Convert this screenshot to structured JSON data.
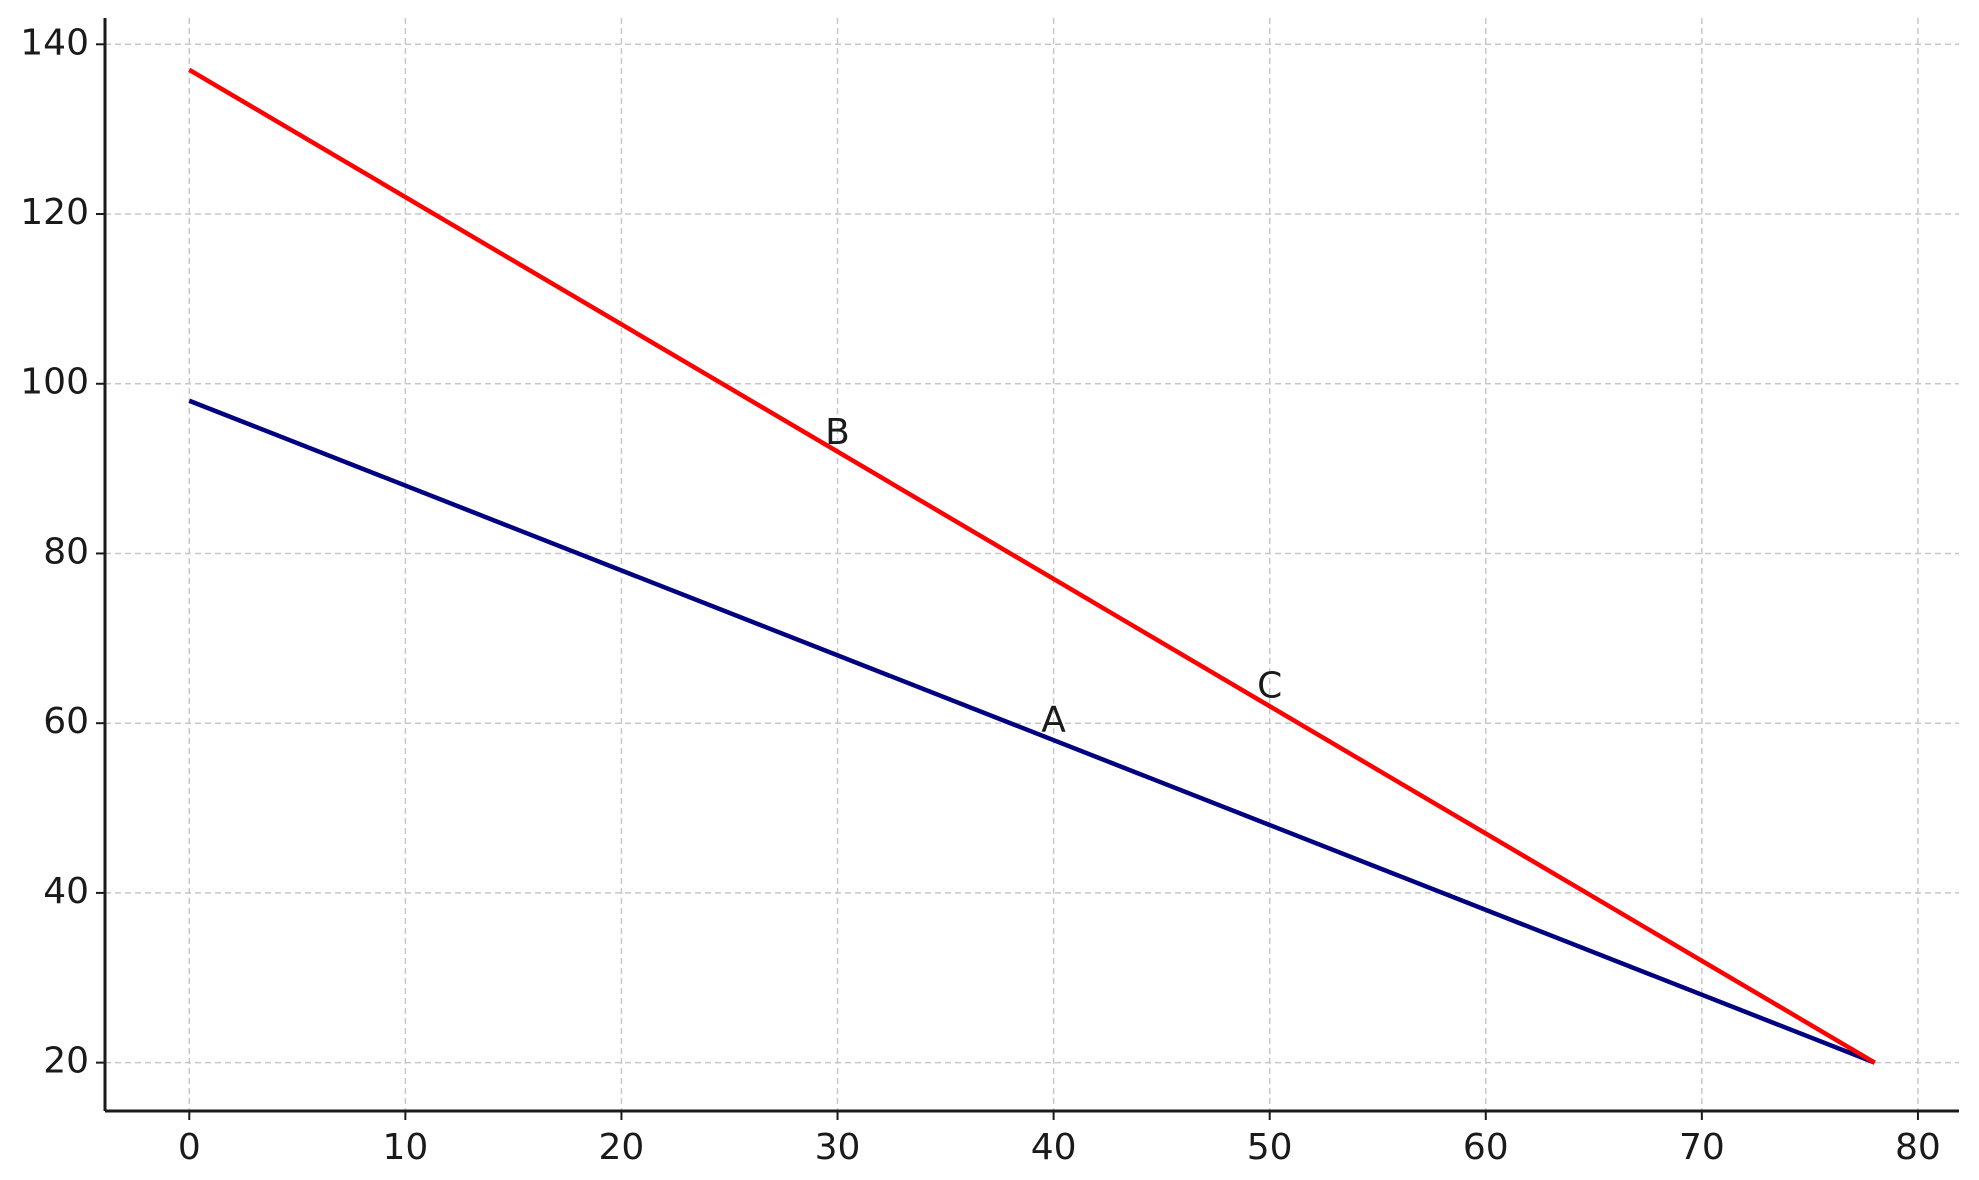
{
  "chart_data": {
    "type": "line",
    "x": [
      0,
      78
    ],
    "series": [
      {
        "color": "#000080",
        "values": [
          98,
          20
        ]
      },
      {
        "color": "#ff0000",
        "values": [
          137,
          20
        ]
      }
    ],
    "xlim": [
      -3.9,
      81.9
    ],
    "ylim": [
      14.3,
      143.1
    ],
    "xticks": [
      0,
      10,
      20,
      30,
      40,
      50,
      60,
      70,
      80
    ],
    "yticks": [
      20,
      40,
      60,
      80,
      100,
      120,
      140
    ],
    "grid": true,
    "annotations": [
      {
        "text": "A",
        "x": 40,
        "y": 59
      },
      {
        "text": "B",
        "x": 30,
        "y": 92.9
      },
      {
        "text": "C",
        "x": 50,
        "y": 63
      }
    ]
  }
}
